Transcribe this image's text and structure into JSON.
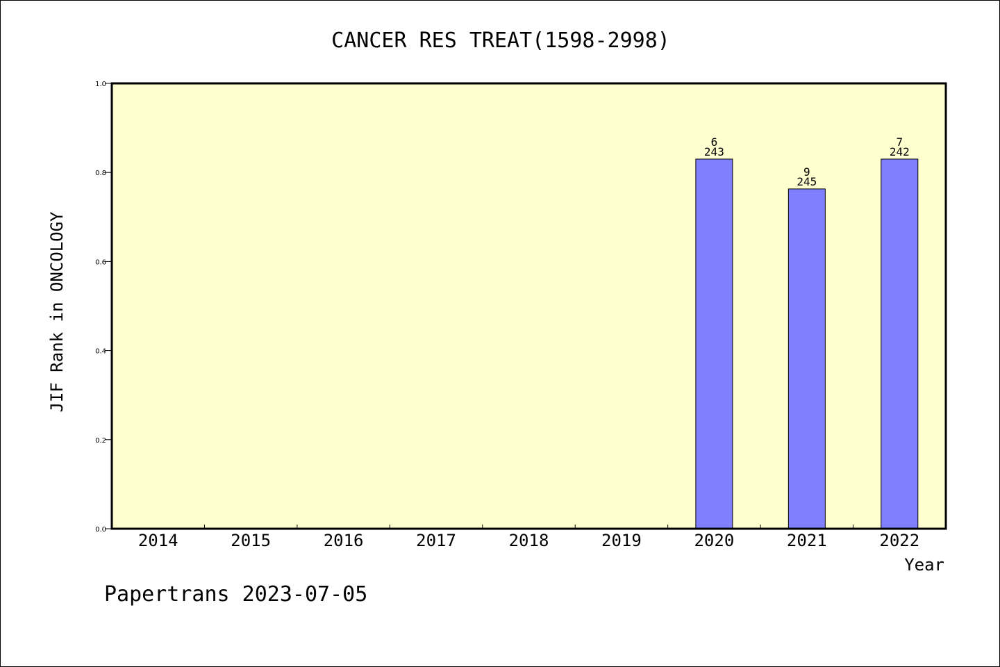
{
  "chart_data": {
    "type": "bar",
    "title": "CANCER RES TREAT(1598-2998)",
    "xlabel": "Year",
    "ylabel": "JIF Rank in ONCOLOGY",
    "categories": [
      "2014",
      "2015",
      "2016",
      "2017",
      "2018",
      "2019",
      "2020",
      "2021",
      "2022"
    ],
    "values": [
      null,
      null,
      null,
      null,
      null,
      null,
      0.83,
      0.763,
      0.83
    ],
    "bar_labels": [
      null,
      null,
      null,
      null,
      null,
      null,
      {
        "rank": "6",
        "total": "243"
      },
      {
        "rank": "9",
        "total": "245"
      },
      {
        "rank": "7",
        "total": "242"
      }
    ],
    "ylim": [
      0.0,
      1.0
    ],
    "yticks": [
      "0.0",
      "0.2",
      "0.4",
      "0.6",
      "0.8",
      "1.0"
    ],
    "grid": false,
    "colors": {
      "plot_background": "#ffffd0",
      "bar_fill": "#8080ff",
      "bar_stroke": "#000000"
    }
  },
  "footer": {
    "text": "Papertrans 2023-07-05"
  }
}
